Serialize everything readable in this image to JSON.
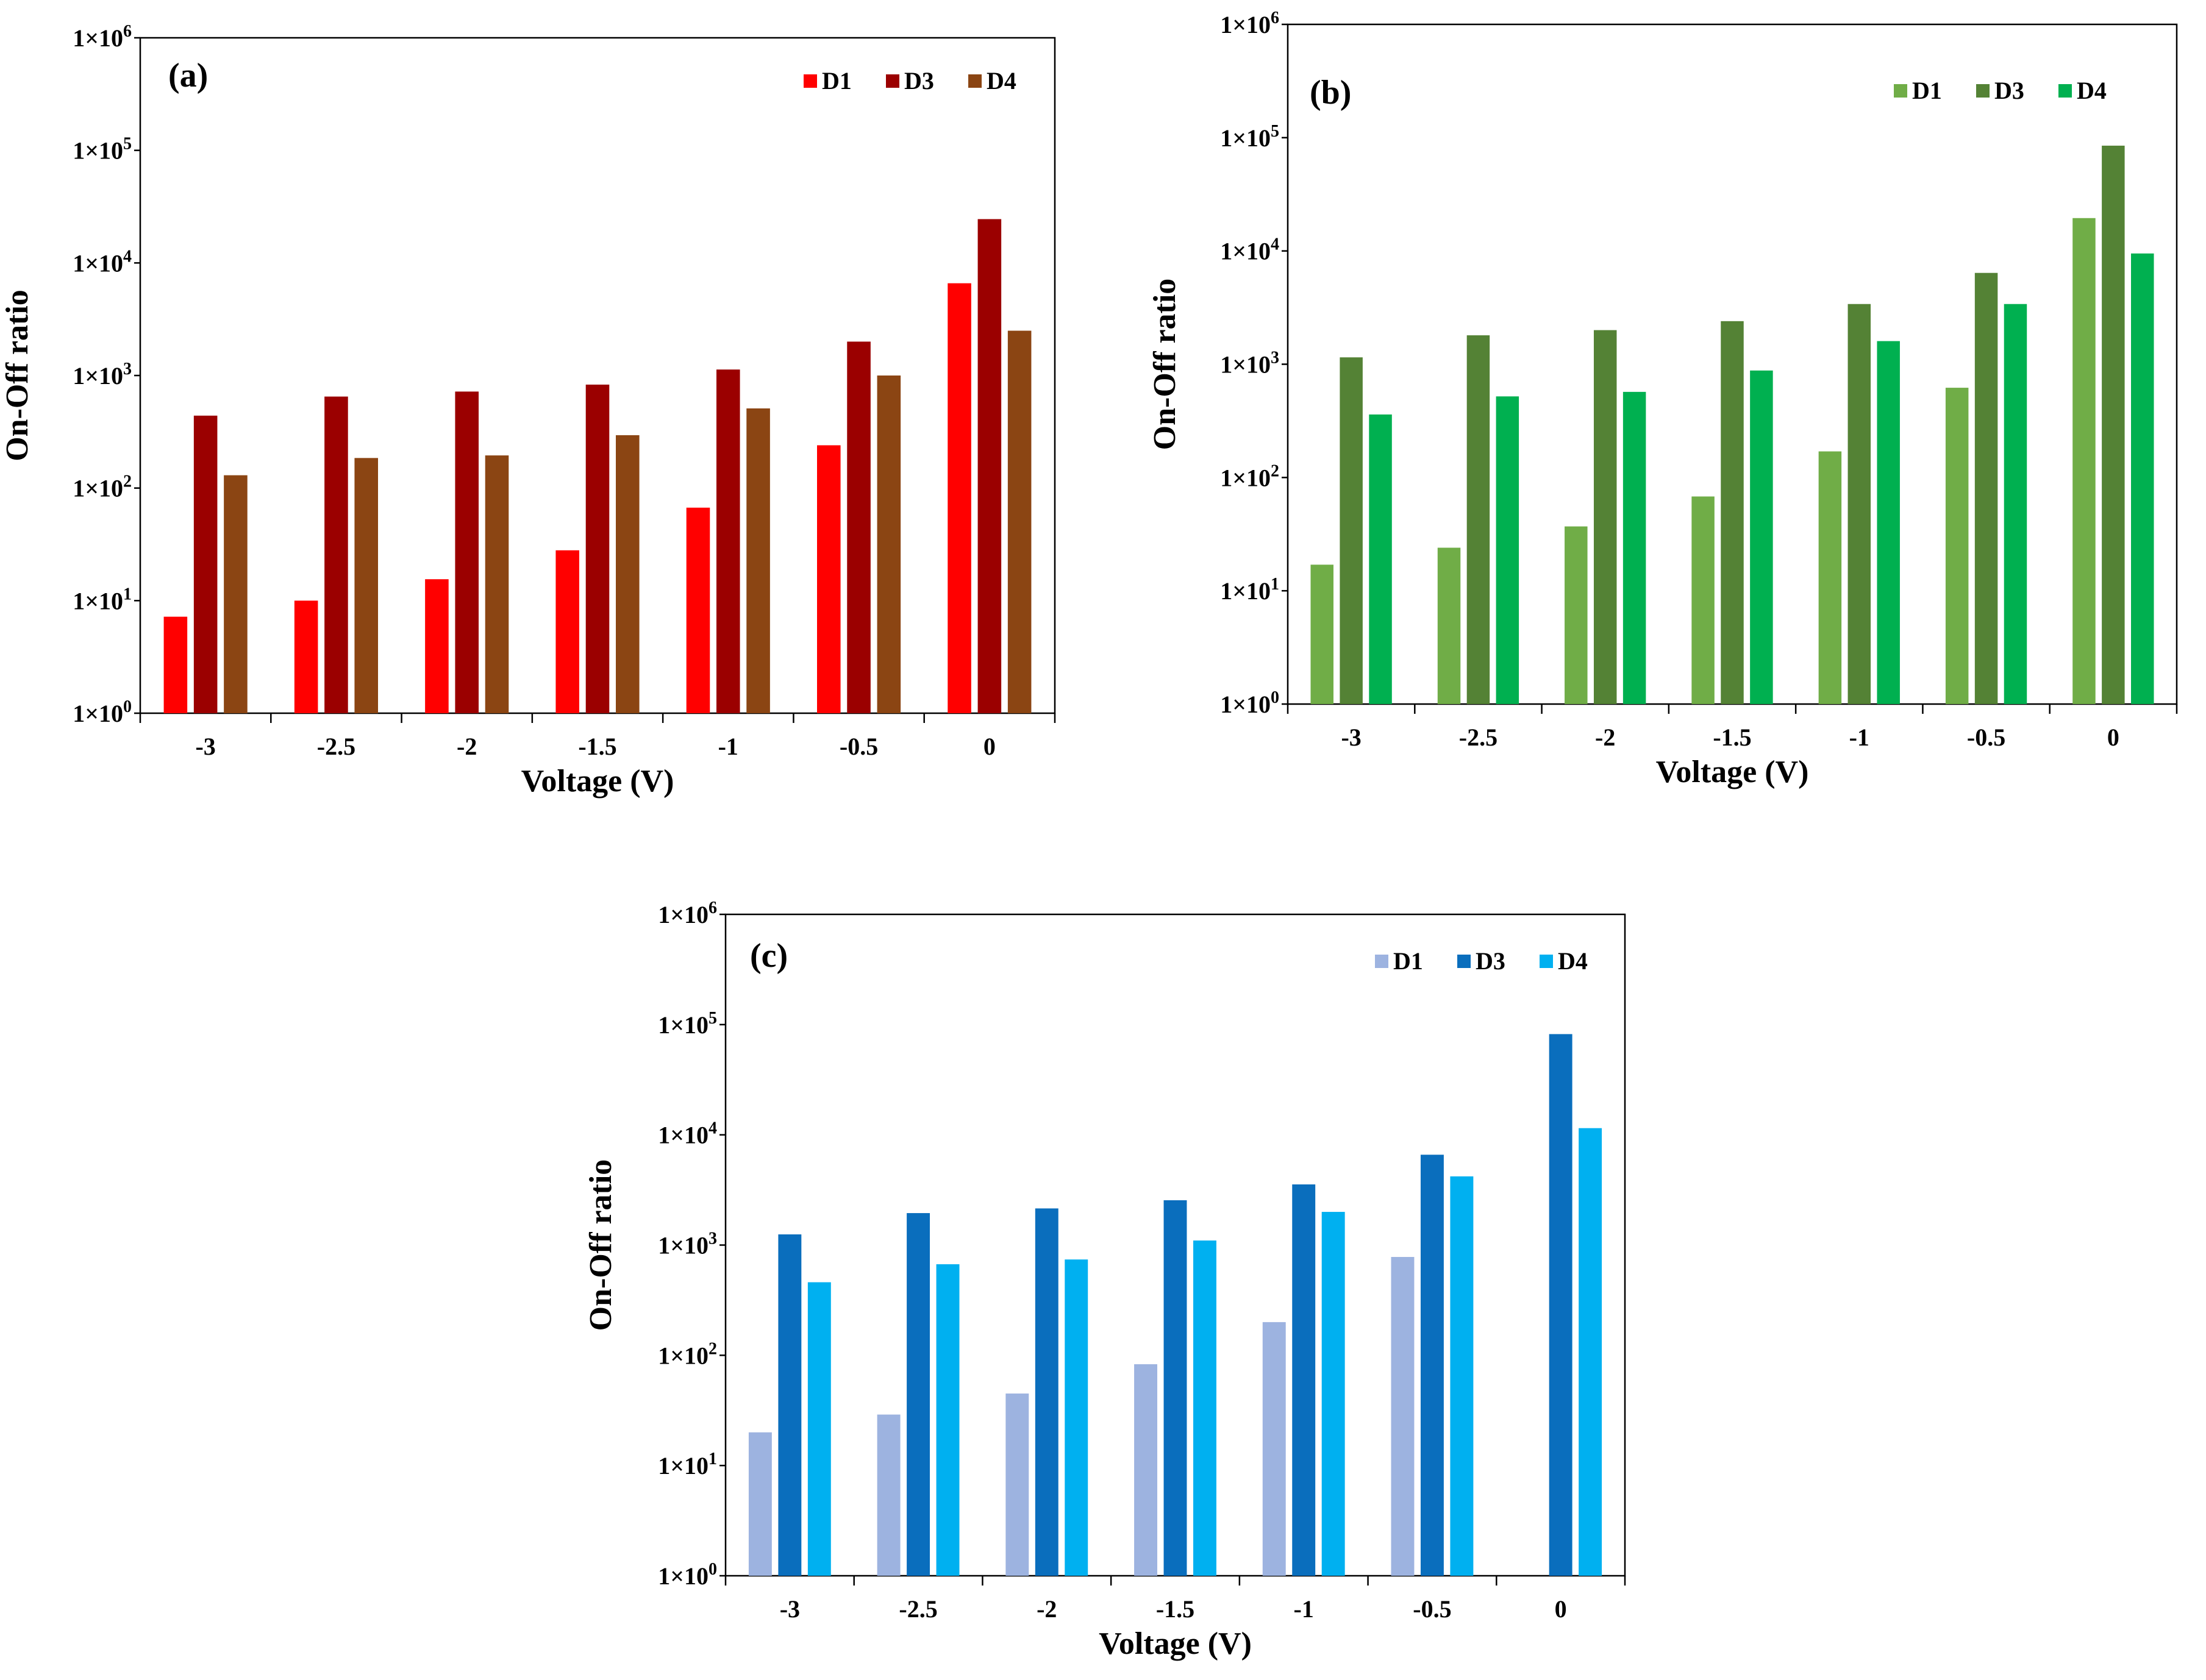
{
  "chart_data": [
    {
      "type": "bar",
      "panel_label": "(a)",
      "xlabel": "Voltage (V)",
      "ylabel": "On-Off ratio",
      "yscale": "log",
      "ylim": [
        1,
        1000000
      ],
      "ytick_labels": [
        {
          "base": "1×10",
          "exp": "0"
        },
        {
          "base": "1×10",
          "exp": "1"
        },
        {
          "base": "1×10",
          "exp": "2"
        },
        {
          "base": "1×10",
          "exp": "3"
        },
        {
          "base": "1×10",
          "exp": "4"
        },
        {
          "base": "1×10",
          "exp": "5"
        },
        {
          "base": "1×10",
          "exp": "6"
        }
      ],
      "categories": [
        "-3",
        "-2.5",
        "-2",
        "-1.5",
        "-1",
        "-0.5",
        "0"
      ],
      "legend_position": "top-right",
      "series": [
        {
          "name": "D1",
          "color": "#ff0000",
          "values": [
            7.2,
            10,
            15.5,
            28,
            67,
            240,
            6600
          ]
        },
        {
          "name": "D3",
          "color": "#9b0000",
          "values": [
            440,
            650,
            720,
            830,
            1130,
            2000,
            24500
          ]
        },
        {
          "name": "D4",
          "color": "#8b4513",
          "values": [
            130,
            185,
            195,
            295,
            510,
            1000,
            2500
          ]
        }
      ]
    },
    {
      "type": "bar",
      "panel_label": "(b)",
      "xlabel": "Voltage (V)",
      "ylabel": "On-Off ratio",
      "yscale": "log",
      "ylim": [
        1,
        1000000
      ],
      "ytick_labels": [
        {
          "base": "1×10",
          "exp": "0"
        },
        {
          "base": "1×10",
          "exp": "1"
        },
        {
          "base": "1×10",
          "exp": "2"
        },
        {
          "base": "1×10",
          "exp": "3"
        },
        {
          "base": "1×10",
          "exp": "4"
        },
        {
          "base": "1×10",
          "exp": "5"
        },
        {
          "base": "1×10",
          "exp": "6"
        }
      ],
      "categories": [
        "-3",
        "-2.5",
        "-2",
        "-1.5",
        "-1",
        "-0.5",
        "0"
      ],
      "legend_position": "top-right",
      "series": [
        {
          "name": "D1",
          "color": "#70ad47",
          "values": [
            17,
            24,
            37,
            68,
            170,
            620,
            19500
          ]
        },
        {
          "name": "D3",
          "color": "#548235",
          "values": [
            1150,
            1800,
            2000,
            2400,
            3400,
            6400,
            85000
          ]
        },
        {
          "name": "D4",
          "color": "#00b050",
          "values": [
            360,
            520,
            570,
            880,
            1600,
            3400,
            9500
          ]
        }
      ]
    },
    {
      "type": "bar",
      "panel_label": "(c)",
      "xlabel": "Voltage (V)",
      "ylabel": "On-Off ratio",
      "yscale": "log",
      "ylim": [
        1,
        1000000
      ],
      "ytick_labels": [
        {
          "base": "1×10",
          "exp": "0"
        },
        {
          "base": "1×10",
          "exp": "1"
        },
        {
          "base": "1×10",
          "exp": "2"
        },
        {
          "base": "1×10",
          "exp": "3"
        },
        {
          "base": "1×10",
          "exp": "4"
        },
        {
          "base": "1×10",
          "exp": "5"
        },
        {
          "base": "1×10",
          "exp": "6"
        }
      ],
      "categories": [
        "-3",
        "-2.5",
        "-2",
        "-1.5",
        "-1",
        "-0.5",
        "0"
      ],
      "legend_position": "top-right",
      "series": [
        {
          "name": "D1",
          "color": "#9db3e0",
          "values": [
            20,
            29,
            45,
            83,
            200,
            780,
            null
          ]
        },
        {
          "name": "D3",
          "color": "#0a6ebd",
          "values": [
            1250,
            1950,
            2150,
            2550,
            3550,
            6600,
            82000
          ]
        },
        {
          "name": "D4",
          "color": "#00b0f0",
          "values": [
            460,
            670,
            740,
            1100,
            2000,
            4200,
            11500
          ]
        }
      ]
    }
  ]
}
